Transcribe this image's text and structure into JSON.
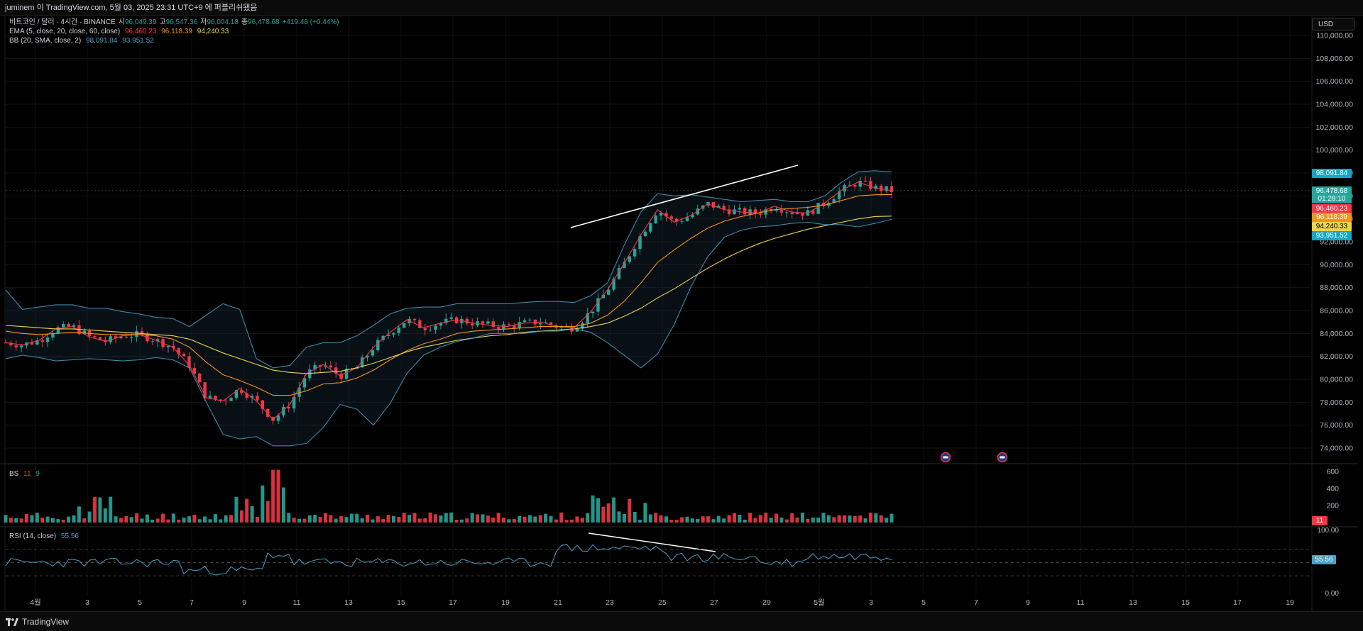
{
  "header": {
    "attribution": "juminem 이 TradingView.com, 5월 03, 2025 23:31 UTC+9 에 퍼블리쉬됐음"
  },
  "legend": {
    "symbol": "비트코인 / 달러 · 4시간 · BINANCE",
    "open_label": "시",
    "open": "96,049.39",
    "high_label": "고",
    "high": "96,547.36",
    "low_label": "저",
    "low": "96,004.18",
    "close_label": "종",
    "close": "96,478.68",
    "change": "+419.48 (+0.44%)",
    "ema_label": "EMA (5, close, 20, close, 60, close)",
    "ema5": "96,460.23",
    "ema20": "96,118.39",
    "ema60": "94,240.33",
    "bb_label": "BB (20, SMA, close, 2)",
    "bb_upper": "98,091.84",
    "bb_lower": "93,951.52",
    "bs_label": "BS",
    "bs_sell": "11",
    "bs_buy": "9",
    "rsi_label": "RSI (14, close)",
    "rsi_value": "55.56"
  },
  "currency_button": "USD",
  "price_axis": [
    "110,000.00",
    "108,000.00",
    "106,000.00",
    "104,000.00",
    "102,000.00",
    "100,000.00",
    "98,000.00",
    "96,000.00",
    "94,000.00",
    "92,000.00",
    "90,000.00",
    "88,000.00",
    "86,000.00",
    "84,000.00",
    "82,000.00",
    "80,000.00",
    "78,000.00",
    "76,000.00",
    "74,000.00"
  ],
  "price_tags": {
    "bb_upper": "98,091.84",
    "last": "96,478.68",
    "countdown": "01:28:10",
    "ema5": "96,460.23",
    "ema20": "96,118.39",
    "ema60": "94,240.33",
    "bb_lower": "93,951.52"
  },
  "volume_axis": [
    "600",
    "400",
    "200"
  ],
  "volume_tag": "11",
  "rsi_axis": [
    "100.00",
    "0.00"
  ],
  "rsi_tag": "55.56",
  "time_axis": [
    "4월",
    "3",
    "5",
    "7",
    "9",
    "11",
    "13",
    "15",
    "17",
    "19",
    "21",
    "23",
    "25",
    "27",
    "29",
    "5월",
    "3",
    "5",
    "7",
    "9",
    "11",
    "13",
    "15",
    "17",
    "19"
  ],
  "footer": {
    "brand": "TradingView"
  },
  "colors": {
    "up": "#26a69a",
    "down": "#f23645",
    "ema5": "#f23645",
    "ema20": "#f7931a",
    "ema60": "#e8d44d",
    "bb": "#4a9fc4",
    "rsi": "#4a9fc4",
    "bb_tag": "#13a6c9"
  },
  "chart_data": {
    "type": "candlestick",
    "symbol": "BTC/USD",
    "interval": "4h",
    "ylim": [
      73000,
      111000
    ],
    "series": [
      {
        "name": "EMA 5",
        "values": [
          83200,
          83000,
          83400,
          84400,
          84600,
          83700,
          83300,
          83800,
          83900,
          83400,
          82800,
          81200,
          78400,
          78100,
          79200,
          78100,
          76500,
          77800,
          80500,
          81300,
          80300,
          81000,
          82800,
          84100,
          85200,
          84500,
          84900,
          85200,
          84900,
          84700,
          84600,
          84900,
          85000,
          84600,
          84500,
          85900,
          87800,
          90100,
          92600,
          94800,
          93700,
          94300,
          95300,
          94800,
          94600,
          94500,
          95100,
          94600,
          94500,
          95400,
          96500,
          97200,
          96700,
          96460
        ]
      },
      {
        "name": "EMA 20",
        "values": [
          84200,
          84000,
          83900,
          84000,
          84100,
          84000,
          83900,
          83900,
          83900,
          83800,
          83500,
          82800,
          81500,
          80400,
          79900,
          79300,
          78600,
          78600,
          79000,
          79600,
          79700,
          80100,
          80800,
          81700,
          82500,
          83100,
          83500,
          84000,
          84200,
          84300,
          84400,
          84500,
          84600,
          84600,
          84600,
          84900,
          85600,
          86800,
          88400,
          90200,
          91300,
          92300,
          93200,
          93800,
          94200,
          94500,
          94800,
          94900,
          95000,
          95200,
          95600,
          96000,
          96100,
          96118
        ]
      },
      {
        "name": "EMA 60",
        "values": [
          84700,
          84600,
          84500,
          84400,
          84400,
          84300,
          84200,
          84100,
          84000,
          83900,
          83800,
          83500,
          82900,
          82300,
          81800,
          81300,
          80800,
          80600,
          80500,
          80600,
          80700,
          81000,
          81400,
          81900,
          82400,
          82800,
          83100,
          83400,
          83600,
          83800,
          83900,
          84100,
          84200,
          84300,
          84400,
          84600,
          84900,
          85500,
          86200,
          87100,
          87900,
          88800,
          89700,
          90500,
          91200,
          91800,
          92300,
          92700,
          93100,
          93400,
          93700,
          94000,
          94200,
          94240
        ]
      },
      {
        "name": "BB Upper",
        "values": [
          87800,
          86100,
          86300,
          86500,
          86500,
          86200,
          86200,
          85900,
          85700,
          85400,
          85300,
          84600,
          85600,
          86600,
          86100,
          81800,
          81000,
          81200,
          82800,
          83200,
          83200,
          83800,
          84700,
          85700,
          86200,
          86300,
          86300,
          86600,
          86600,
          86600,
          86600,
          86700,
          86800,
          86800,
          86700,
          87300,
          88400,
          91700,
          94600,
          96200,
          96000,
          96100,
          95900,
          95700,
          95500,
          95600,
          95700,
          95500,
          95500,
          96000,
          97200,
          98100,
          98200,
          98092
        ]
      },
      {
        "name": "BB Lower",
        "values": [
          81800,
          82100,
          81900,
          81600,
          81700,
          81800,
          81700,
          81600,
          81700,
          81900,
          81700,
          81000,
          78000,
          75200,
          74800,
          75000,
          74200,
          74200,
          74400,
          75800,
          77800,
          77400,
          76000,
          77900,
          80500,
          82100,
          82800,
          83300,
          83600,
          84000,
          84000,
          84000,
          84200,
          84200,
          84400,
          84100,
          83200,
          82100,
          81000,
          82200,
          84800,
          88100,
          90700,
          92400,
          93000,
          93300,
          93400,
          93600,
          93700,
          93500,
          93500,
          93300,
          93600,
          93952
        ]
      }
    ],
    "trendlines": [
      {
        "pane": "price",
        "from": [
          "2025-04-21",
          92000
        ],
        "to": [
          "2025-04-30",
          98900
        ]
      },
      {
        "pane": "rsi",
        "from": [
          "2025-04-22",
          83
        ],
        "to": [
          "2025-04-27",
          72
        ]
      }
    ],
    "rsi": {
      "name": "RSI 14",
      "last": 55.56,
      "ylim": [
        0,
        100
      ],
      "bands": [
        70,
        50,
        30
      ]
    },
    "volume_ylim": [
      0,
      650
    ]
  }
}
